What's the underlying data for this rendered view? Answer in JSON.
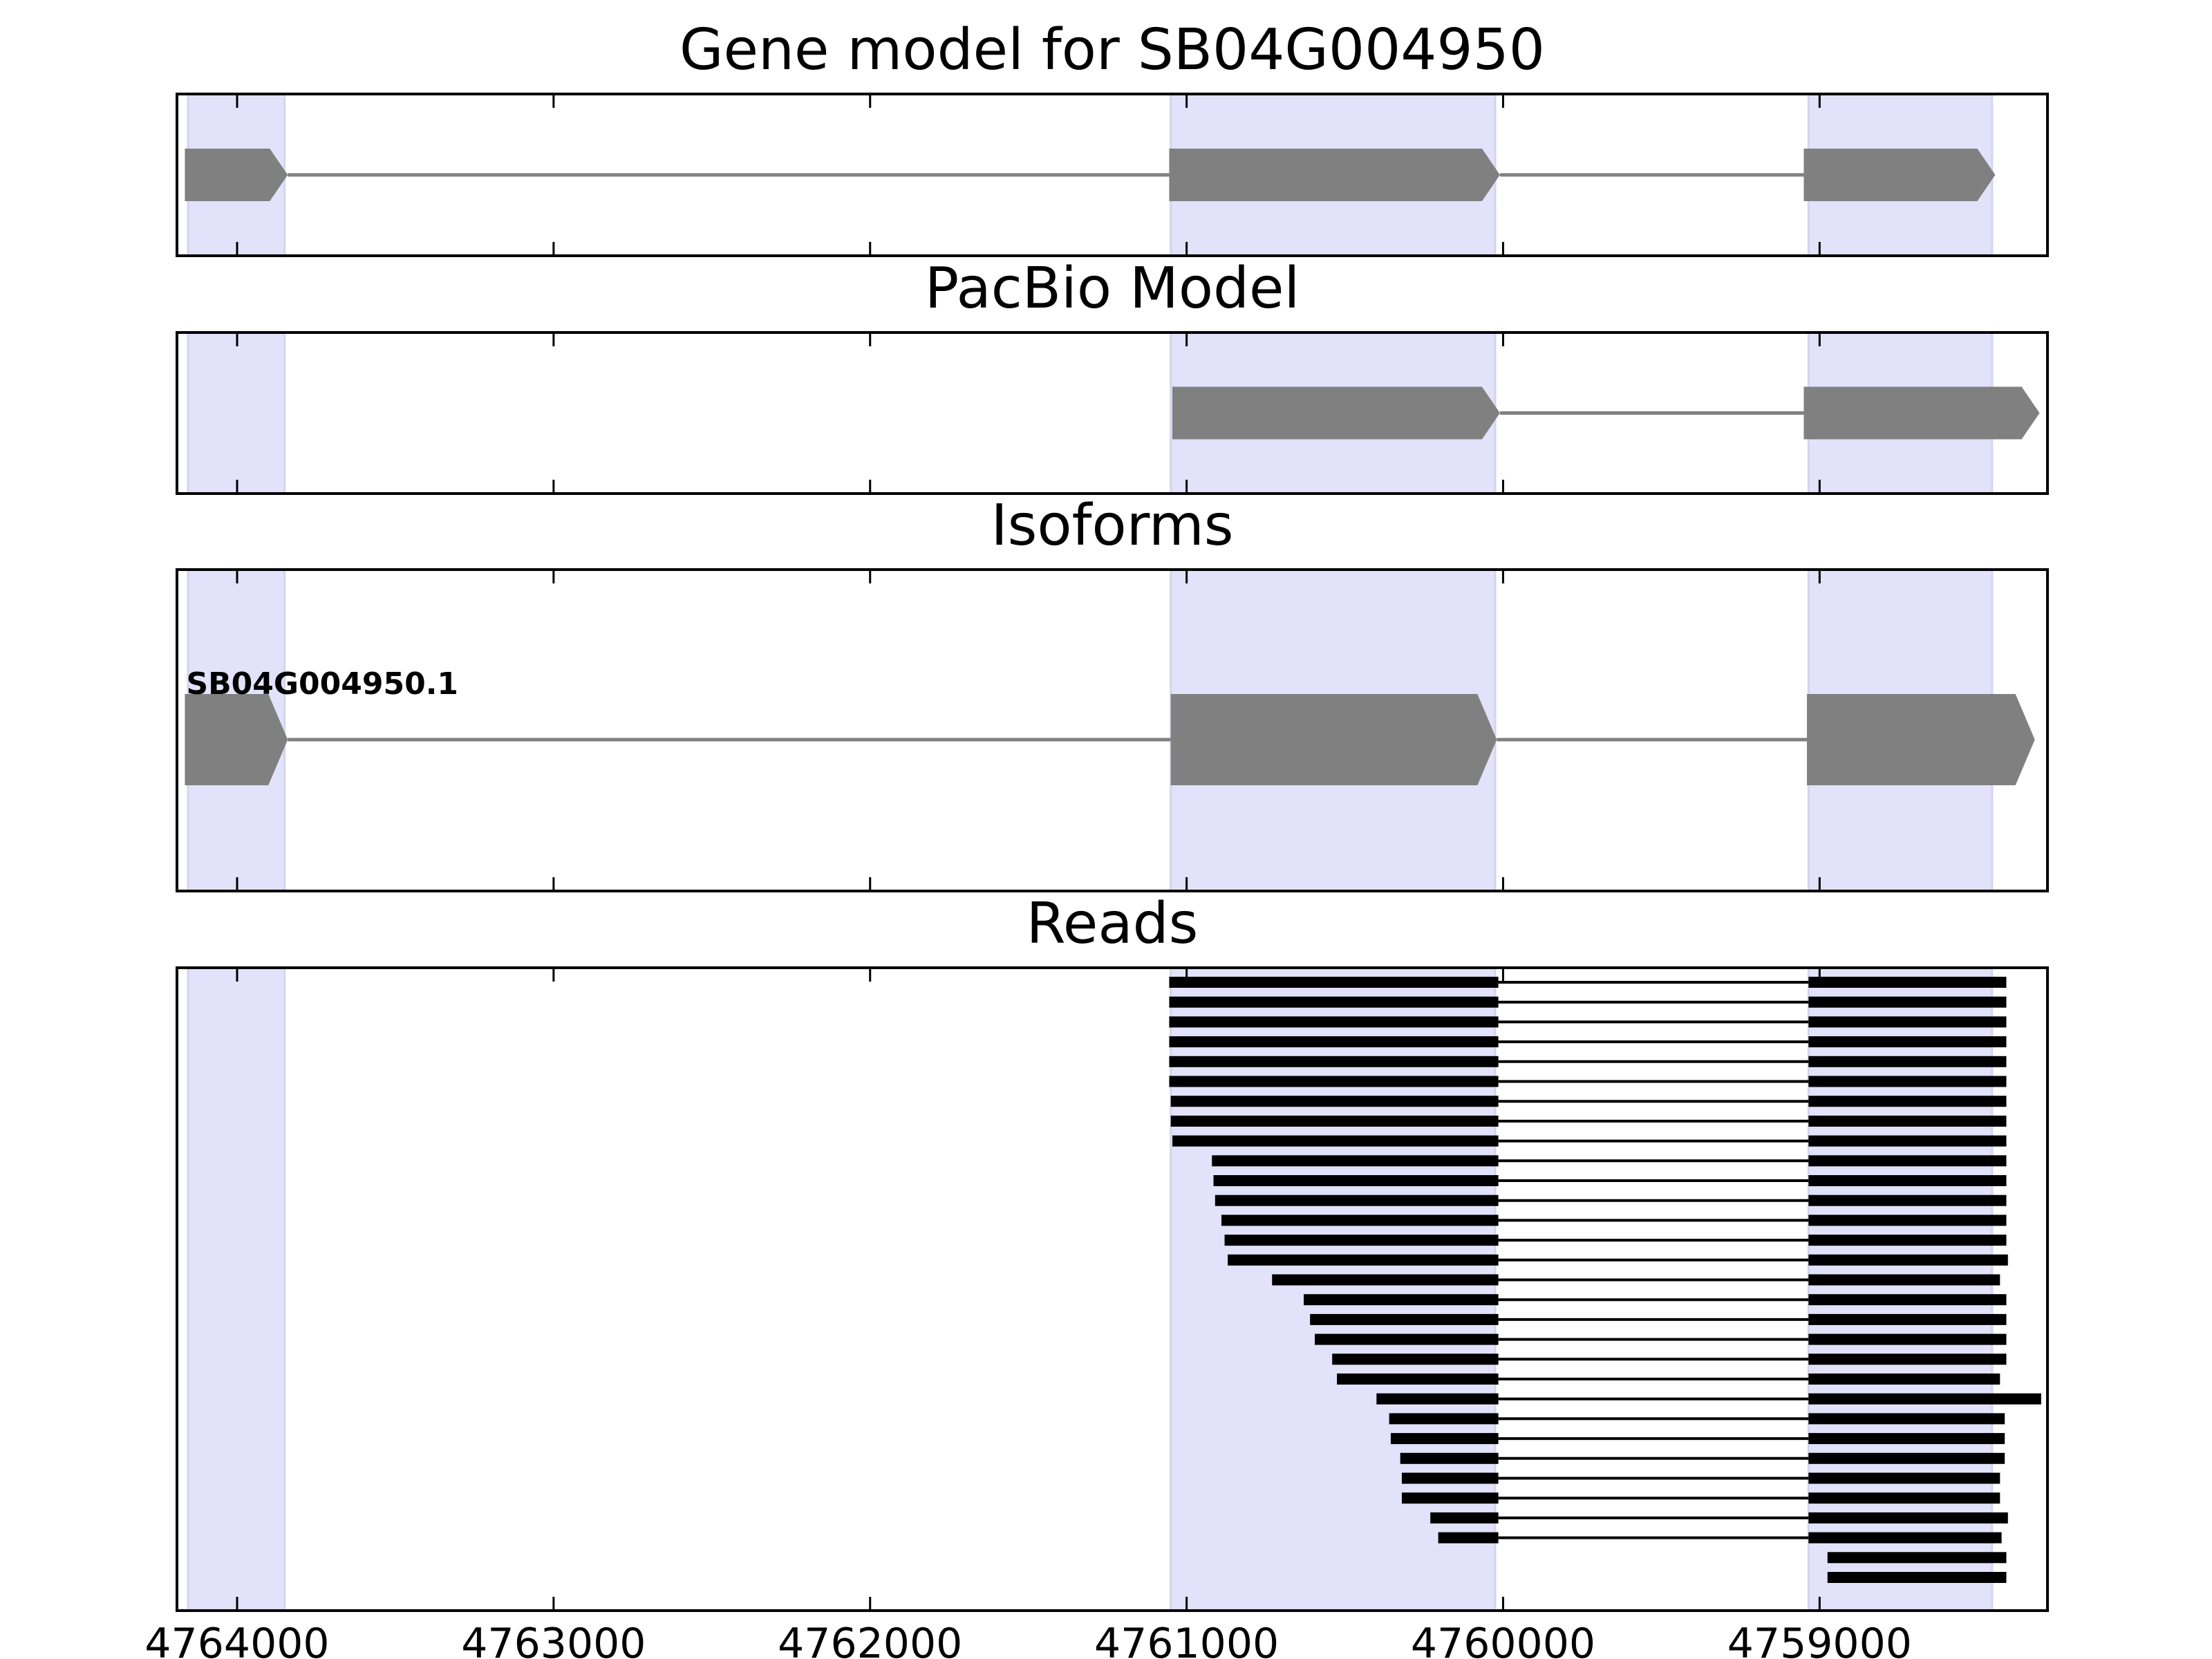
{
  "chart_data": {
    "type": "gene-track",
    "x_axis": {
      "range": [
        4764190,
        4758280
      ],
      "ticks": [
        4764000,
        4763000,
        4762000,
        4761000,
        4760000,
        4759000
      ],
      "tick_labels": [
        "4764000",
        "4763000",
        "4762000",
        "4761000",
        "4760000",
        "4759000"
      ]
    },
    "colors": {
      "exon_fill": "#808080",
      "intron_line": "#808080",
      "highlight": "#e2e2fb",
      "read": "#000000"
    },
    "highlight_regions": [
      [
        4764155,
        4763850
      ],
      [
        4761050,
        4760025
      ],
      [
        4759035,
        4758455
      ]
    ],
    "panels": [
      {
        "title": "Gene model for SB04G004950",
        "exons": [
          [
            4764165,
            4763840
          ],
          [
            4761055,
            4760010
          ],
          [
            4759050,
            4758445
          ]
        ]
      },
      {
        "title": "PacBio Model",
        "exons": [
          [
            4761045,
            4760010
          ],
          [
            4759050,
            4758305
          ]
        ]
      },
      {
        "title": "Isoforms",
        "isoforms": [
          {
            "label": "SB04G004950.1",
            "exons": [
              [
                4764165,
                4763840
              ],
              [
                4761050,
                4760020
              ],
              [
                4759040,
                4758320
              ]
            ]
          }
        ]
      },
      {
        "title": "Reads",
        "reads": [
          [
            [
              4761055,
              4760015
            ],
            [
              4759035,
              4758410
            ]
          ],
          [
            [
              4761055,
              4760015
            ],
            [
              4759035,
              4758410
            ]
          ],
          [
            [
              4761055,
              4760015
            ],
            [
              4759035,
              4758410
            ]
          ],
          [
            [
              4761055,
              4760015
            ],
            [
              4759035,
              4758410
            ]
          ],
          [
            [
              4761055,
              4760015
            ],
            [
              4759035,
              4758410
            ]
          ],
          [
            [
              4761055,
              4760015
            ],
            [
              4759035,
              4758410
            ]
          ],
          [
            [
              4761050,
              4760015
            ],
            [
              4759035,
              4758410
            ]
          ],
          [
            [
              4761050,
              4760015
            ],
            [
              4759035,
              4758410
            ]
          ],
          [
            [
              4761045,
              4760015
            ],
            [
              4759035,
              4758410
            ]
          ],
          [
            [
              4760920,
              4760015
            ],
            [
              4759035,
              4758410
            ]
          ],
          [
            [
              4760915,
              4760015
            ],
            [
              4759035,
              4758410
            ]
          ],
          [
            [
              4760910,
              4760015
            ],
            [
              4759035,
              4758410
            ]
          ],
          [
            [
              4760890,
              4760015
            ],
            [
              4759035,
              4758410
            ]
          ],
          [
            [
              4760880,
              4760015
            ],
            [
              4759035,
              4758410
            ]
          ],
          [
            [
              4760870,
              4760015
            ],
            [
              4759035,
              4758405
            ]
          ],
          [
            [
              4760730,
              4760015
            ],
            [
              4759035,
              4758430
            ]
          ],
          [
            [
              4760630,
              4760015
            ],
            [
              4759035,
              4758410
            ]
          ],
          [
            [
              4760610,
              4760015
            ],
            [
              4759035,
              4758410
            ]
          ],
          [
            [
              4760595,
              4760015
            ],
            [
              4759035,
              4758410
            ]
          ],
          [
            [
              4760540,
              4760015
            ],
            [
              4759035,
              4758410
            ]
          ],
          [
            [
              4760525,
              4760015
            ],
            [
              4759035,
              4758430
            ]
          ],
          [
            [
              4760400,
              4760015
            ],
            [
              4759035,
              4758300
            ]
          ],
          [
            [
              4760360,
              4760015
            ],
            [
              4759035,
              4758415
            ]
          ],
          [
            [
              4760355,
              4760015
            ],
            [
              4759035,
              4758415
            ]
          ],
          [
            [
              4760325,
              4760015
            ],
            [
              4759035,
              4758415
            ]
          ],
          [
            [
              4760320,
              4760015
            ],
            [
              4759035,
              4758430
            ]
          ],
          [
            [
              4760320,
              4760015
            ],
            [
              4759035,
              4758430
            ]
          ],
          [
            [
              4760230,
              4760015
            ],
            [
              4759035,
              4758405
            ]
          ],
          [
            [
              4760205,
              4760015
            ],
            [
              4759035,
              4758425
            ]
          ],
          [
            [
              4758975,
              4758410
            ]
          ],
          [
            [
              4758975,
              4758410
            ]
          ]
        ]
      }
    ]
  }
}
